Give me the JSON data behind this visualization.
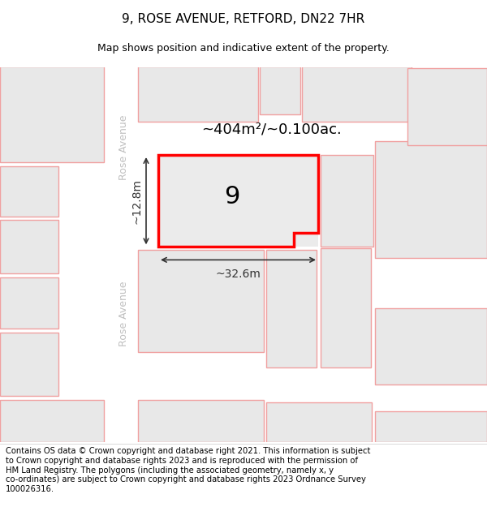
{
  "title": "9, ROSE AVENUE, RETFORD, DN22 7HR",
  "subtitle": "Map shows position and indicative extent of the property.",
  "footer_lines": [
    "Contains OS data © Crown copyright and database right 2021. This information is subject",
    "to Crown copyright and database rights 2023 and is reproduced with the permission of",
    "HM Land Registry. The polygons (including the associated geometry, namely x, y",
    "co-ordinates) are subject to Crown copyright and database rights 2023 Ordnance Survey",
    "100026316."
  ],
  "area_label": "~404m²/~0.100ac.",
  "width_label": "~32.6m",
  "height_label": "~12.8m",
  "street_label": "Rose Avenue",
  "map_bg": "#f5f5f5",
  "plot_fill": "#ebebeb",
  "plot_border": "#ff0000",
  "block_fill": "#e8e8e8",
  "block_border": "#f0a0a0",
  "road_color": "#ffffff",
  "dim_color": "#333333",
  "street_text_color": "#c0c0c0",
  "title_fontsize": 11,
  "subtitle_fontsize": 9,
  "footer_fontsize": 7.2
}
